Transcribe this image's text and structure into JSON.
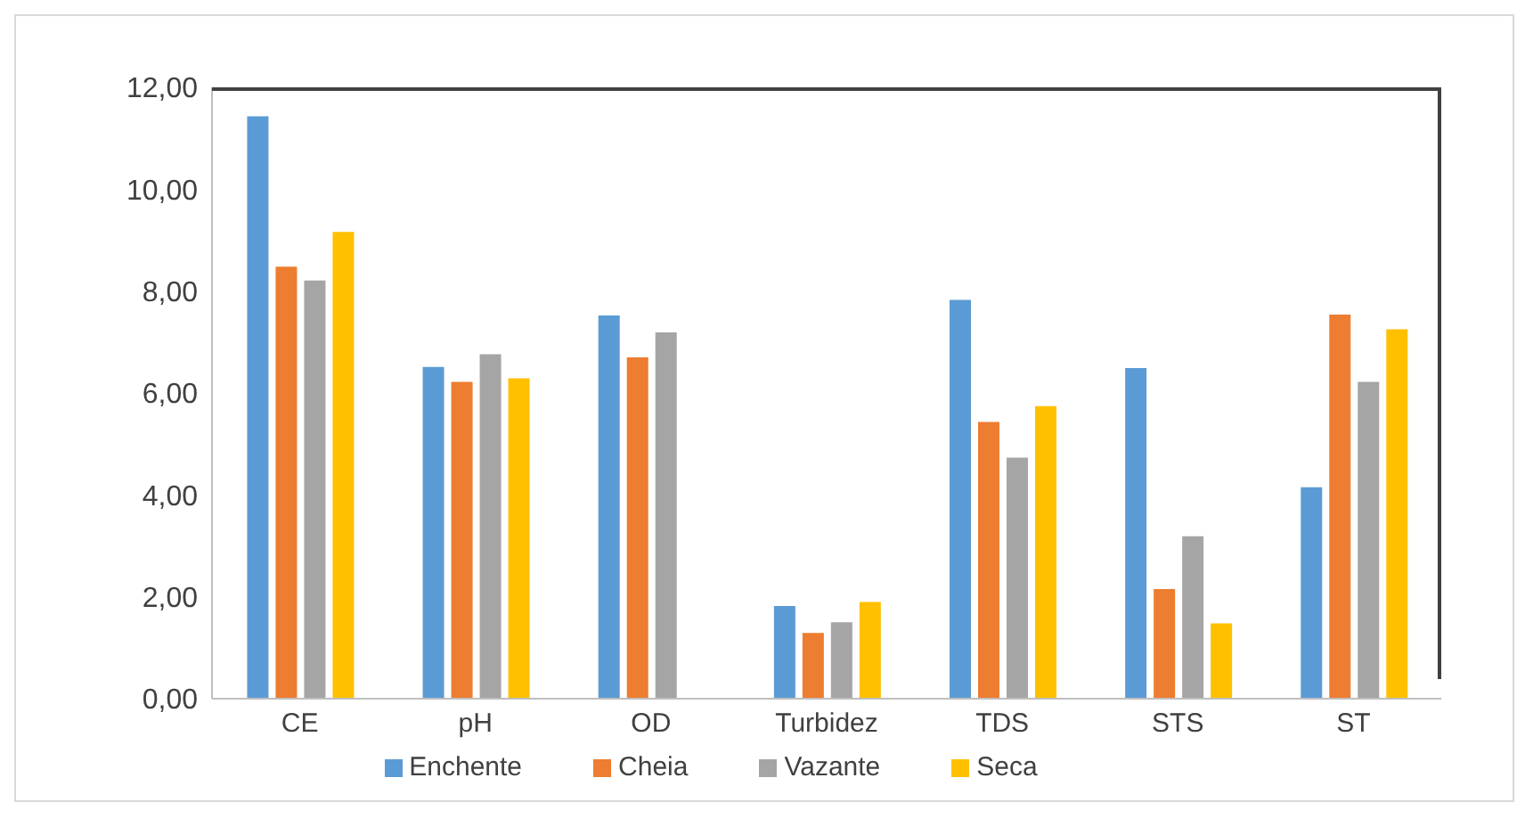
{
  "chart_data": {
    "type": "bar",
    "categories": [
      "CE",
      "pH",
      "OD",
      "Turbidez",
      "TDS",
      "STS",
      "ST"
    ],
    "series": [
      {
        "name": "Enchente",
        "color": "#5b9bd5",
        "values": [
          11.43,
          6.51,
          7.52,
          1.82,
          7.83,
          6.49,
          4.15
        ]
      },
      {
        "name": "Cheia",
        "color": "#ed7d31",
        "values": [
          8.48,
          6.22,
          6.7,
          1.29,
          5.43,
          2.15,
          7.54
        ]
      },
      {
        "name": "Vazante",
        "color": "#a5a5a5",
        "values": [
          8.21,
          6.76,
          7.19,
          1.5,
          4.73,
          3.19,
          6.22
        ]
      },
      {
        "name": "Seca",
        "color": "#ffc000",
        "values": [
          9.16,
          6.29,
          null,
          1.9,
          5.74,
          1.48,
          7.25
        ]
      }
    ],
    "ylim": [
      0,
      12
    ],
    "yticks": [
      {
        "value": 0,
        "label": "0,00"
      },
      {
        "value": 2,
        "label": "2,00"
      },
      {
        "value": 4,
        "label": "4,00"
      },
      {
        "value": 6,
        "label": "6,00"
      },
      {
        "value": 8,
        "label": "8,00"
      },
      {
        "value": 10,
        "label": "10,00"
      },
      {
        "value": 12,
        "label": "12,00"
      }
    ],
    "legend": "bottom"
  }
}
